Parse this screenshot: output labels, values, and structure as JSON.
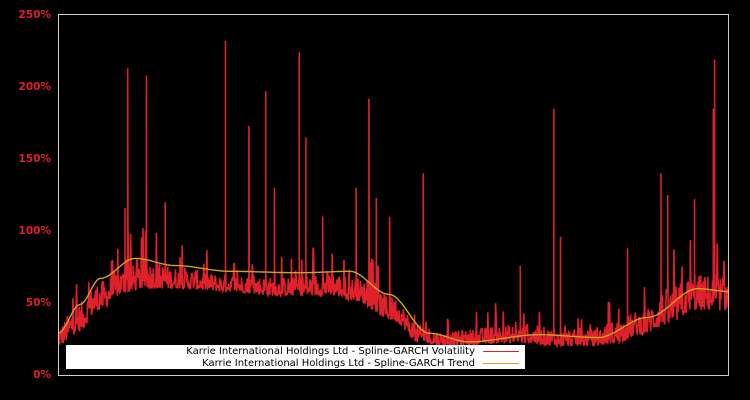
{
  "chart_data": {
    "type": "line",
    "title": "",
    "xlabel": "",
    "ylabel": "",
    "ylim": [
      0,
      250
    ],
    "y_ticks": [
      "0%",
      "50%",
      "100%",
      "150%",
      "200%",
      "250%"
    ],
    "y_tick_values": [
      0,
      50,
      100,
      150,
      200,
      250
    ],
    "grid": false,
    "legend_position": "lower left (inside)",
    "x_axis_note": "time index, no tick labels shown; normalized 0..1 across plot width",
    "series": [
      {
        "name": "Karrie International Holdings Ltd - Spline-GARCH Volatility",
        "color": "#e0202a",
        "baseline_x": [
          0.0,
          0.03,
          0.06,
          0.1,
          0.13,
          0.18,
          0.25,
          0.33,
          0.41,
          0.44,
          0.5,
          0.54,
          0.58,
          0.62,
          0.66,
          0.7,
          0.75,
          0.8,
          0.83,
          0.87,
          0.91,
          0.95,
          1.0
        ],
        "baseline_low": [
          20,
          30,
          45,
          57,
          60,
          60,
          58,
          55,
          55,
          52,
          38,
          22,
          20,
          21,
          22,
          22,
          20,
          20,
          22,
          28,
          35,
          45,
          45
        ],
        "baseline_high": [
          35,
          50,
          65,
          75,
          80,
          75,
          70,
          68,
          72,
          68,
          55,
          35,
          30,
          32,
          35,
          35,
          32,
          32,
          38,
          45,
          60,
          70,
          70
        ],
        "spikes": [
          {
            "x": 0.1,
            "y": 116
          },
          {
            "x": 0.105,
            "y": 98
          },
          {
            "x": 0.1,
            "y": 105
          },
          {
            "x": 0.104,
            "y": 213
          },
          {
            "x": 0.132,
            "y": 208
          },
          {
            "x": 0.16,
            "y": 120
          },
          {
            "x": 0.25,
            "y": 232
          },
          {
            "x": 0.285,
            "y": 173
          },
          {
            "x": 0.31,
            "y": 197
          },
          {
            "x": 0.323,
            "y": 130
          },
          {
            "x": 0.36,
            "y": 224
          },
          {
            "x": 0.37,
            "y": 165
          },
          {
            "x": 0.395,
            "y": 110
          },
          {
            "x": 0.445,
            "y": 124
          },
          {
            "x": 0.445,
            "y": 130
          },
          {
            "x": 0.464,
            "y": 192
          },
          {
            "x": 0.475,
            "y": 123
          },
          {
            "x": 0.495,
            "y": 110
          },
          {
            "x": 0.545,
            "y": 140
          },
          {
            "x": 0.69,
            "y": 76
          },
          {
            "x": 0.74,
            "y": 185
          },
          {
            "x": 0.75,
            "y": 96
          },
          {
            "x": 0.85,
            "y": 88
          },
          {
            "x": 0.9,
            "y": 140
          },
          {
            "x": 0.91,
            "y": 125
          },
          {
            "x": 0.95,
            "y": 122
          },
          {
            "x": 0.978,
            "y": 185
          },
          {
            "x": 0.98,
            "y": 219
          }
        ]
      },
      {
        "name": "Karrie International Holdings Ltd - Spline-GARCH Trend",
        "color": "#d4a020",
        "x": [
          0.0,
          0.033,
          0.063,
          0.115,
          0.175,
          0.257,
          0.361,
          0.436,
          0.494,
          0.554,
          0.613,
          0.718,
          0.806,
          0.88,
          0.955,
          1.0
        ],
        "values": [
          29,
          49,
          67,
          81,
          76,
          72,
          71,
          72,
          56,
          29,
          23,
          28,
          26,
          40,
          60,
          58
        ]
      }
    ]
  },
  "legend": {
    "items": [
      {
        "label": "Karrie International Holdings Ltd - Spline-GARCH Volatility",
        "color": "#e0202a"
      },
      {
        "label": "Karrie International Holdings Ltd - Spline-GARCH Trend",
        "color": "#d4a020"
      }
    ]
  },
  "colors": {
    "background": "#000000",
    "axis": "#cccccc",
    "tick_label": "#e0202a",
    "volatility": "#e0202a",
    "trend": "#d4a020",
    "legend_bg": "#ffffff"
  }
}
